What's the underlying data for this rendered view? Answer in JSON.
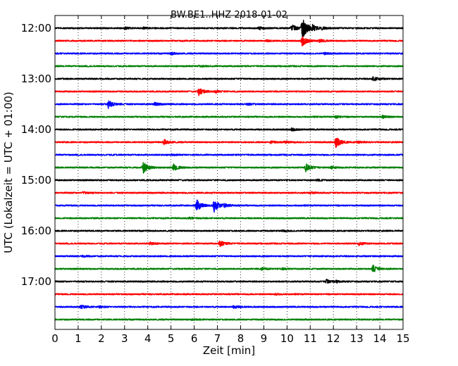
{
  "chart_data": {
    "type": "line",
    "title": "BW.BE1..HHZ 2018-01-02",
    "xlabel": "Zeit  [min]",
    "ylabel": "UTC (Lokalzeit = UTC + 01:00)",
    "xlim": [
      0,
      15
    ],
    "x_ticks": [
      "0",
      "1",
      "2",
      "3",
      "4",
      "5",
      "6",
      "7",
      "8",
      "9",
      "10",
      "11",
      "12",
      "13",
      "14",
      "15"
    ],
    "y_tick_labels": [
      "12:00",
      "13:00",
      "14:00",
      "15:00",
      "16:00",
      "17:00"
    ],
    "grid": "vertical dotted",
    "row_interval_min": 15,
    "color_cycle": [
      "#000000",
      "#ff0000",
      "#0000ff",
      "#008000"
    ],
    "series": [
      {
        "start": "12:00",
        "events": [
          {
            "t": 3.0,
            "amp": 0.15
          },
          {
            "t": 3.8,
            "amp": 0.12
          },
          {
            "t": 8.8,
            "amp": 0.2
          },
          {
            "t": 10.2,
            "amp": 0.55
          },
          {
            "t": 10.65,
            "amp": 1.9
          },
          {
            "t": 11.1,
            "amp": 0.35
          },
          {
            "t": 11.5,
            "amp": 0.15
          }
        ]
      },
      {
        "start": "12:15",
        "events": [
          {
            "t": 9.1,
            "amp": 0.12
          },
          {
            "t": 10.65,
            "amp": 0.8
          },
          {
            "t": 11.4,
            "amp": 0.2
          }
        ]
      },
      {
        "start": "12:30",
        "events": [
          {
            "t": 5.0,
            "amp": 0.18
          },
          {
            "t": 11.6,
            "amp": 0.12
          }
        ]
      },
      {
        "start": "12:45",
        "events": [
          {
            "t": 6.2,
            "amp": 0.12
          }
        ]
      },
      {
        "start": "13:00",
        "events": [
          {
            "t": 13.7,
            "amp": 0.35
          }
        ]
      },
      {
        "start": "13:15",
        "events": [
          {
            "t": 6.2,
            "amp": 0.55
          },
          {
            "t": 6.9,
            "amp": 0.2
          }
        ]
      },
      {
        "start": "13:30",
        "events": [
          {
            "t": 2.3,
            "amp": 0.6
          },
          {
            "t": 4.3,
            "amp": 0.22
          },
          {
            "t": 8.3,
            "amp": 0.12
          }
        ]
      },
      {
        "start": "13:45",
        "events": [
          {
            "t": 12.1,
            "amp": 0.18
          },
          {
            "t": 14.1,
            "amp": 0.22
          }
        ]
      },
      {
        "start": "14:00",
        "events": [
          {
            "t": 10.2,
            "amp": 0.2
          }
        ]
      },
      {
        "start": "14:15",
        "events": [
          {
            "t": 4.7,
            "amp": 0.4
          },
          {
            "t": 9.3,
            "amp": 0.18
          },
          {
            "t": 9.9,
            "amp": 0.15
          },
          {
            "t": 12.1,
            "amp": 0.85
          },
          {
            "t": 13.0,
            "amp": 0.15
          }
        ]
      },
      {
        "start": "14:30",
        "events": [
          {
            "t": 5.0,
            "amp": 0.1
          }
        ]
      },
      {
        "start": "14:45",
        "events": [
          {
            "t": 3.8,
            "amp": 0.9
          },
          {
            "t": 5.1,
            "amp": 0.55
          },
          {
            "t": 10.8,
            "amp": 0.65
          },
          {
            "t": 11.9,
            "amp": 0.15
          }
        ]
      },
      {
        "start": "15:00",
        "events": [
          {
            "t": 11.3,
            "amp": 0.12
          }
        ]
      },
      {
        "start": "15:15",
        "events": [
          {
            "t": 1.2,
            "amp": 0.15
          },
          {
            "t": 11.0,
            "amp": 0.12
          }
        ]
      },
      {
        "start": "15:30",
        "events": [
          {
            "t": 6.1,
            "amp": 0.9
          },
          {
            "t": 6.85,
            "amp": 1.0
          },
          {
            "t": 7.3,
            "amp": 0.2
          }
        ]
      },
      {
        "start": "15:45",
        "events": [
          {
            "t": 5.8,
            "amp": 0.12
          }
        ]
      },
      {
        "start": "16:00",
        "events": [
          {
            "t": 9.8,
            "amp": 0.1
          }
        ]
      },
      {
        "start": "16:15",
        "events": [
          {
            "t": 4.1,
            "amp": 0.2
          },
          {
            "t": 7.1,
            "amp": 0.45
          },
          {
            "t": 13.1,
            "amp": 0.25
          }
        ]
      },
      {
        "start": "16:30",
        "events": [
          {
            "t": 1.2,
            "amp": 0.1
          }
        ]
      },
      {
        "start": "16:45",
        "events": [
          {
            "t": 8.9,
            "amp": 0.18
          },
          {
            "t": 9.8,
            "amp": 0.12
          },
          {
            "t": 13.7,
            "amp": 0.55
          }
        ]
      },
      {
        "start": "17:00",
        "events": [
          {
            "t": 11.7,
            "amp": 0.3
          },
          {
            "t": 12.1,
            "amp": 0.15
          }
        ]
      },
      {
        "start": "17:15",
        "events": [
          {
            "t": 9.5,
            "amp": 0.1
          }
        ]
      },
      {
        "start": "17:30",
        "events": [
          {
            "t": 1.1,
            "amp": 0.28
          },
          {
            "t": 1.9,
            "amp": 0.12
          },
          {
            "t": 7.7,
            "amp": 0.22
          }
        ]
      },
      {
        "start": "17:45",
        "events": [
          {
            "t": 5.9,
            "amp": 0.1
          }
        ]
      }
    ]
  }
}
